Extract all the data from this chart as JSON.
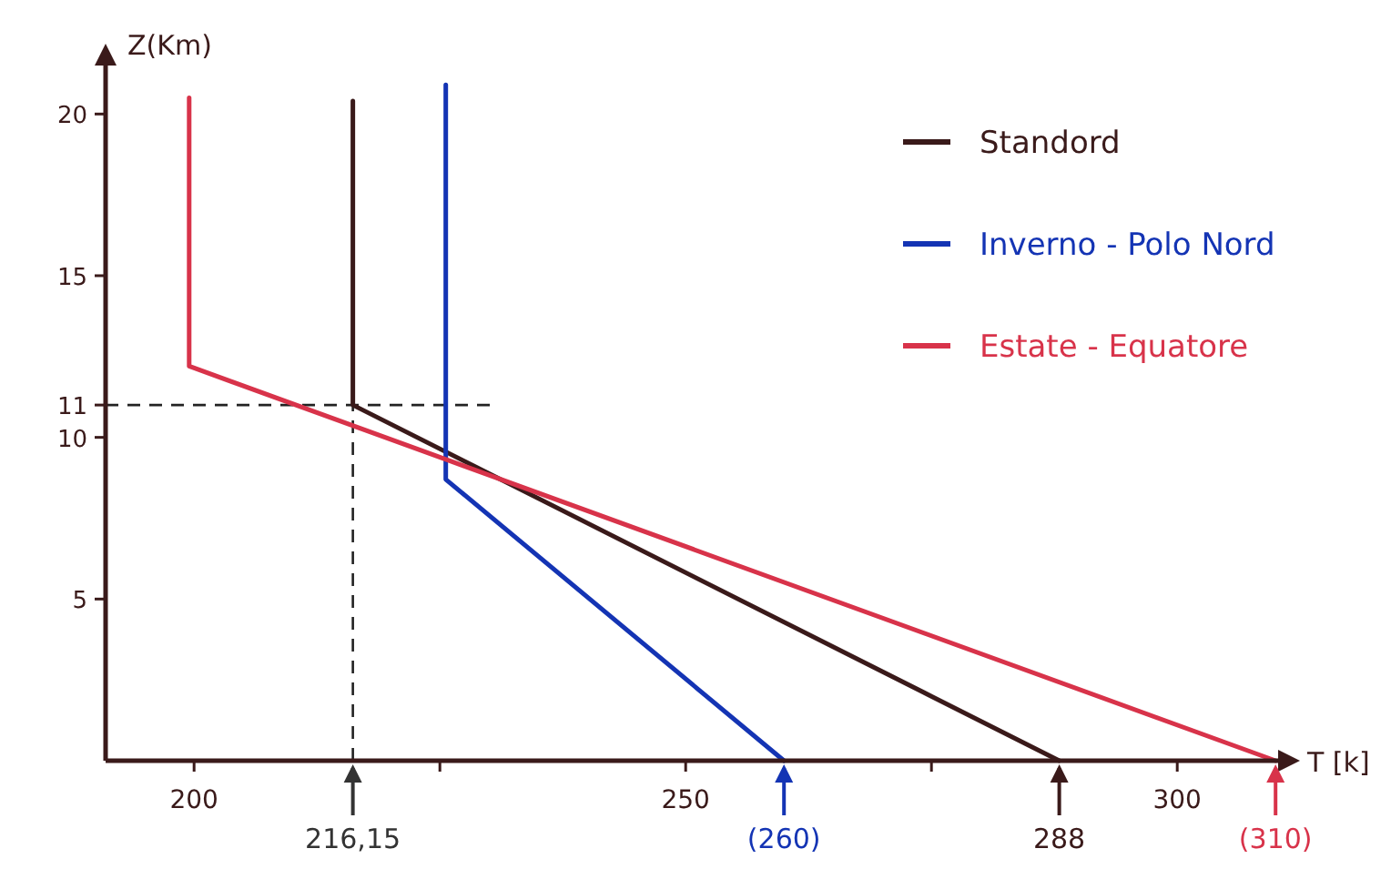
{
  "chart_data": {
    "type": "line",
    "xlabel": "T [k]",
    "ylabel": "Z(Km)",
    "xlim": [
      191,
      311
    ],
    "ylim": [
      0,
      21.5
    ],
    "xticks": [
      200,
      {
        "value": 225,
        "label": null
      },
      250,
      {
        "value": 275,
        "label": null
      },
      300
    ],
    "yticks": [
      5,
      10,
      11,
      15,
      20
    ],
    "series": [
      {
        "name": "Standord",
        "color": "#3a1a1a",
        "x": [
          288,
          216.15,
          216.15
        ],
        "values": [
          0,
          11,
          20.4
        ]
      },
      {
        "name": "Inverno - Polo Nord",
        "color": "#1434b4",
        "x": [
          260,
          225.6,
          225.6
        ],
        "values": [
          0,
          8.7,
          20.9
        ]
      },
      {
        "name": "Estate - Equatore",
        "color": "#d8334a",
        "x": [
          310,
          199.5,
          199.5
        ],
        "values": [
          0,
          12.2,
          20.5
        ]
      }
    ],
    "ref_lines": [
      {
        "axis": "y",
        "value": 11,
        "line_style": "dashed"
      },
      {
        "axis": "x",
        "value": 216.15,
        "line_style": "dashed"
      }
    ],
    "annotations": [
      {
        "text": "216,15",
        "x": 216.15,
        "y": 0
      },
      {
        "text": "(260)",
        "x": 260,
        "y": 0
      },
      {
        "text": "288",
        "x": 288,
        "y": 0
      },
      {
        "text": "(310)",
        "x": 310,
        "y": 0
      }
    ],
    "legend": "top right",
    "grid": false,
    "marker": "none",
    "line_style": "solid"
  }
}
